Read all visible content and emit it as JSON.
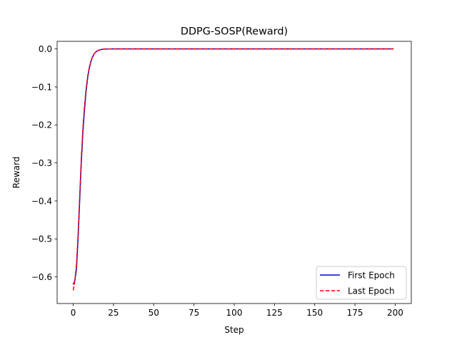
{
  "chart_data": {
    "type": "line",
    "title": "DDPG-SOSP(Reward)",
    "xlabel": "Step",
    "ylabel": "Reward",
    "xlim": [
      -10,
      210
    ],
    "ylim": [
      -0.67,
      0.02
    ],
    "xticks": [
      0,
      25,
      50,
      75,
      100,
      125,
      150,
      175,
      200
    ],
    "xtick_labels": [
      "0",
      "25",
      "50",
      "75",
      "100",
      "125",
      "150",
      "175",
      "200"
    ],
    "yticks": [
      0.0,
      -0.1,
      -0.2,
      -0.3,
      -0.4,
      -0.5,
      -0.6
    ],
    "ytick_labels": [
      "0.0",
      "−0.1",
      "−0.2",
      "−0.3",
      "−0.4",
      "−0.5",
      "−0.6"
    ],
    "grid": false,
    "legend_position": "lower-right",
    "series": [
      {
        "name": "First Epoch",
        "color": "#0000cc",
        "style": "solid",
        "x": [
          0,
          1,
          2,
          3,
          4,
          5,
          6,
          7,
          8,
          9,
          10,
          11,
          12,
          13,
          14,
          15,
          16,
          17,
          18,
          19,
          20,
          22,
          25,
          30,
          50,
          100,
          150,
          199
        ],
        "y": [
          -0.62,
          -0.61,
          -0.58,
          -0.5,
          -0.4,
          -0.3,
          -0.22,
          -0.16,
          -0.11,
          -0.075,
          -0.05,
          -0.033,
          -0.021,
          -0.013,
          -0.008,
          -0.005,
          -0.003,
          -0.002,
          -0.001,
          -0.0005,
          -0.0003,
          -0.0001,
          0.0,
          0.0,
          0.0,
          0.0,
          0.0,
          0.0
        ]
      },
      {
        "name": "Last Epoch",
        "color": "#ff0000",
        "style": "dashed",
        "x": [
          0,
          1,
          2,
          3,
          4,
          5,
          6,
          7,
          8,
          9,
          10,
          11,
          12,
          13,
          14,
          15,
          16,
          17,
          18,
          19,
          20,
          22,
          25,
          30,
          50,
          100,
          150,
          199
        ],
        "y": [
          -0.635,
          -0.61,
          -0.57,
          -0.49,
          -0.39,
          -0.29,
          -0.21,
          -0.15,
          -0.105,
          -0.072,
          -0.048,
          -0.032,
          -0.02,
          -0.013,
          -0.008,
          -0.005,
          -0.003,
          -0.002,
          -0.001,
          -0.0005,
          -0.0003,
          -0.0001,
          0.0,
          0.0,
          0.0,
          0.0,
          0.0,
          0.0
        ]
      }
    ]
  }
}
